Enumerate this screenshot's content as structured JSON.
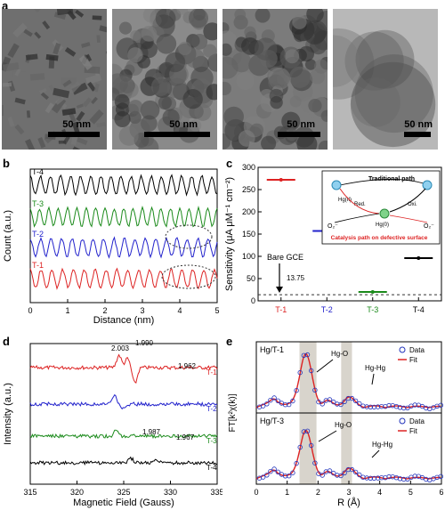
{
  "panel_labels": {
    "a": "a",
    "b": "b",
    "c": "c",
    "d": "d",
    "e": "e"
  },
  "tem": {
    "scale_labels": [
      "50 nm",
      "50 nm",
      "50 nm",
      "50 nm"
    ],
    "colors": [
      "#6f6f6f",
      "#8a8a8a",
      "#7b7b7b",
      "#b8b8b8"
    ]
  },
  "chart_data": [
    {
      "panel": "b",
      "type": "line",
      "xlabel": "Distance (nm)",
      "ylabel": "Count (a.u.)",
      "xlim": [
        0,
        5
      ],
      "x_ticks": [
        "0",
        "1",
        "2",
        "3",
        "4",
        "5"
      ],
      "series": [
        {
          "name": "T-4",
          "color": "#000000",
          "period_nm": 0.27
        },
        {
          "name": "T-3",
          "color": "#1a8a1a",
          "period_nm": 0.25
        },
        {
          "name": "T-2",
          "color": "#2222cc",
          "period_nm": 0.28
        },
        {
          "name": "T-1",
          "color": "#dd2222",
          "period_nm": 0.29
        }
      ]
    },
    {
      "panel": "c",
      "type": "scatter",
      "ylabel": "Sensitivity (μA μM⁻¹ cm⁻²)",
      "categories": [
        "T-1",
        "T-2",
        "T-3",
        "T-4"
      ],
      "category_colors": [
        "#dd2222",
        "#2222cc",
        "#1a8a1a",
        "#000000"
      ],
      "values": [
        272,
        157,
        20,
        96
      ],
      "ylim": [
        0,
        300
      ],
      "y_ticks": [
        "0",
        "50",
        "100",
        "150",
        "200",
        "250",
        "300"
      ],
      "baseline": {
        "label": "Bare GCE",
        "value": 13.75,
        "value_label": "13.75"
      },
      "inset": {
        "title": "Traditional path",
        "nodes": [
          "Hg(II)",
          "Hg(0)"
        ],
        "o2_left": "O₂⁻",
        "o2_right": "O₂⁻",
        "red": "Red.",
        "oxi": "Oxi.",
        "caption": "Catalysis path on defective surface"
      }
    },
    {
      "panel": "d",
      "type": "line",
      "xlabel": "Magnetic Field (Gauss)",
      "ylabel": "Intensity (a.u.)",
      "xlim": [
        315,
        335
      ],
      "x_ticks": [
        "315",
        "320",
        "325",
        "330",
        "335"
      ],
      "series": [
        {
          "name": "T-1",
          "color": "#dd2222"
        },
        {
          "name": "T-2",
          "color": "#2222cc"
        },
        {
          "name": "T-3",
          "color": "#1a8a1a"
        },
        {
          "name": "T-4",
          "color": "#000000"
        }
      ],
      "annotations": [
        "2.003",
        "1.990",
        "1.962",
        "1.987",
        "1.967"
      ]
    },
    {
      "panel": "e",
      "type": "line",
      "xlabel": "R (Å)",
      "ylabel": "FT[k²χ(k)]",
      "xlim": [
        0,
        6
      ],
      "x_ticks": [
        "0",
        "1",
        "2",
        "3",
        "4",
        "5",
        "6"
      ],
      "subplots": [
        {
          "title": "Hg/T-1",
          "peaks": [
            "Hg-O",
            "Hg-Hg"
          ]
        },
        {
          "title": "Hg/T-3",
          "peaks": [
            "Hg-O",
            "Hg-Hg"
          ]
        }
      ],
      "legend": [
        "Data",
        "Fit"
      ],
      "data_color": "#2233bb",
      "fit_color": "#dd2222",
      "shaded_ranges": [
        [
          1.4,
          1.95
        ],
        [
          2.75,
          3.1
        ]
      ]
    }
  ]
}
